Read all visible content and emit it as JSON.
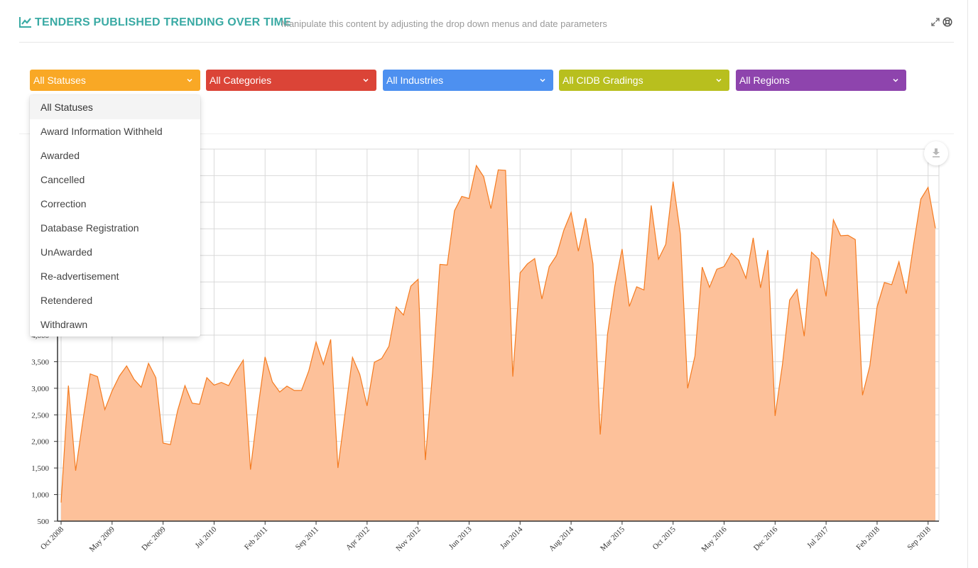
{
  "header": {
    "title": "TENDERS PUBLISHED TRENDING OVER TIME",
    "subtitle": "Manipulate this content by adjusting the drop down menus and date parameters",
    "icon": "line-chart-icon",
    "expand_icon": "expand-icon",
    "help_icon": "lifebuoy-icon"
  },
  "filters": [
    {
      "label": "All Statuses",
      "color": "#f9a825"
    },
    {
      "label": "All Categories",
      "color": "#db4437"
    },
    {
      "label": "All Industries",
      "color": "#4d90f0"
    },
    {
      "label": "All CIDB Gradings",
      "color": "#b8bf1e"
    },
    {
      "label": "All Regions",
      "color": "#8e44ad"
    }
  ],
  "status_dropdown": {
    "open": true,
    "selected": "All Statuses",
    "options": [
      "All Statuses",
      "Award Information Withheld",
      "Awarded",
      "Cancelled",
      "Correction",
      "Database Registration",
      "UnAwarded",
      "Re-advertisement",
      "Retendered",
      "Withdrawn"
    ]
  },
  "download_icon": "download-icon",
  "chart_data": {
    "type": "area",
    "series_color": "#f47b20",
    "fill_color": "#fdc19a",
    "grid": true,
    "ylim": [
      500,
      7500
    ],
    "y_tick_labels": [
      "500",
      "1,000",
      "1,500",
      "2,000",
      "2,500",
      "3,000",
      "3,500",
      "4,000"
    ],
    "x_tick_labels": [
      "Oct 2008",
      "May 2009",
      "Dec 2009",
      "Jul 2010",
      "Feb 2011",
      "Sep 2011",
      "Apr 2012",
      "Nov 2012",
      "Jun 2013",
      "Jan 2014",
      "Aug 2014",
      "Mar 2015",
      "Oct 2015",
      "May 2016",
      "Dec 2016",
      "Jul 2017",
      "Feb 2018",
      "Sep 2018"
    ],
    "start_month": "Oct 2008",
    "values": [
      850,
      3050,
      1450,
      2400,
      3270,
      3220,
      2600,
      2950,
      3230,
      3420,
      3170,
      3020,
      3470,
      3200,
      1970,
      1940,
      2580,
      3050,
      2720,
      2700,
      3200,
      3060,
      3110,
      3050,
      3310,
      3530,
      1470,
      2600,
      3590,
      3120,
      2930,
      3040,
      2960,
      2960,
      3330,
      3870,
      3450,
      3920,
      1500,
      2560,
      3580,
      3260,
      2670,
      3490,
      3560,
      3790,
      4530,
      4380,
      4920,
      5050,
      1650,
      3320,
      5330,
      5320,
      6340,
      6610,
      6570,
      7190,
      6980,
      6380,
      7110,
      7100,
      3220,
      5170,
      5340,
      5440,
      4680,
      5290,
      5500,
      5970,
      6310,
      5580,
      6200,
      5340,
      2130,
      4020,
      4920,
      5620,
      4540,
      4910,
      4850,
      6440,
      5430,
      5710,
      6890,
      5900,
      3000,
      3610,
      5280,
      4900,
      5240,
      5290,
      5540,
      5410,
      5070,
      5830,
      4890,
      5600,
      2480,
      3440,
      4660,
      4860,
      3980,
      5560,
      5430,
      4730,
      6170,
      5870,
      5880,
      5800,
      2870,
      3420,
      4530,
      4990,
      4950,
      5380,
      4780,
      5690,
      6560,
      6780,
      6010
    ]
  }
}
